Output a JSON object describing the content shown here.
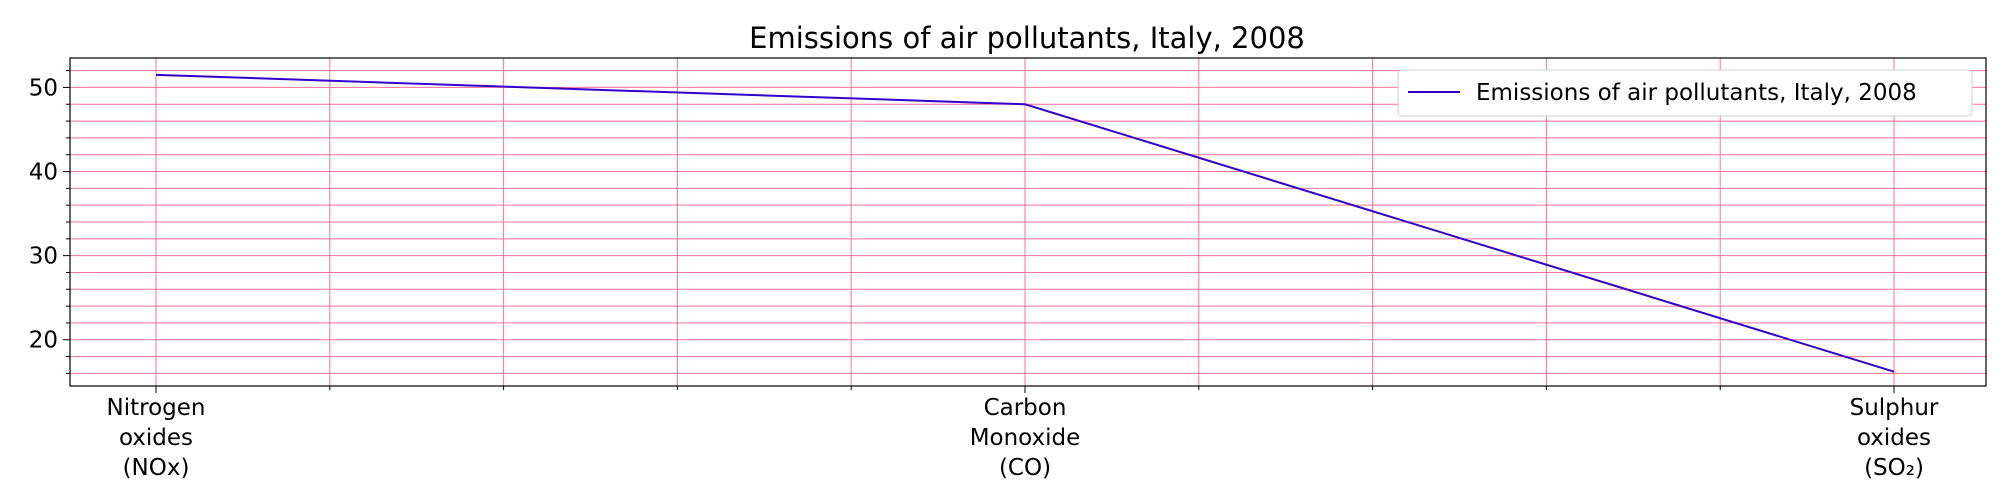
{
  "chart_data": {
    "type": "line",
    "title": "Emissions of air pollutants, Italy, 2008",
    "xlabel": "",
    "ylabel": "",
    "categories": [
      [
        "Nitrogen",
        "oxides",
        "(NOx)"
      ],
      [
        "Carbon",
        "Monoxide",
        "(CO)"
      ],
      [
        "Sulphur",
        "oxides",
        "(SO₂)"
      ]
    ],
    "series": [
      {
        "name": "Emissions of air pollutants, Italy, 2008",
        "values": [
          51.5,
          48.0,
          16.2
        ]
      }
    ],
    "ylim": [
      14.5,
      53.5
    ],
    "y_ticks": [
      20,
      30,
      40,
      50
    ],
    "grid": true,
    "legend_position": "top-right",
    "colors": {
      "line": "#3300cc",
      "grid": "#ff6f9a",
      "axis": "#000000"
    }
  }
}
